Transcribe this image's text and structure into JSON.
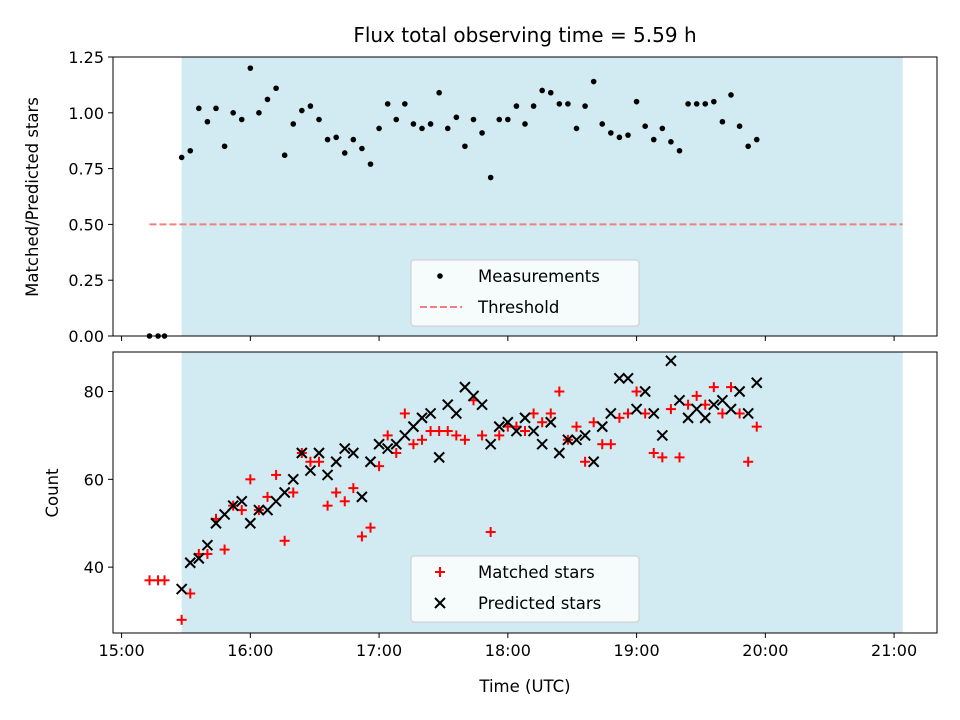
{
  "colors": {
    "observing_window": "#add8e6",
    "measurement": "#000000",
    "threshold": "#f08080",
    "matched": "#ff0000",
    "predicted": "#000000"
  },
  "chart_data": [
    {
      "type": "scatter",
      "title": "Flux total observing time = 5.59 h",
      "xlabel": "",
      "ylabel": "Matched/Predicted stars",
      "xlim": [
        "14:56",
        "21:20"
      ],
      "ylim": [
        0,
        1.25
      ],
      "grid": false,
      "legend_position": "lower-center",
      "x_ticks": [
        "15:00",
        "16:00",
        "17:00",
        "18:00",
        "19:00",
        "20:00",
        "21:00"
      ],
      "y_ticks": [
        "0.00",
        "0.25",
        "0.50",
        "0.75",
        "1.00",
        "1.25"
      ],
      "observing_window": [
        "15:28",
        "21:04"
      ],
      "threshold": {
        "value": 0.5,
        "from": "15:13",
        "to": "21:04",
        "style": "dashed"
      },
      "legend": [
        "Measurements",
        "Threshold"
      ],
      "series": [
        {
          "name": "Measurements",
          "points": [
            [
              "15:13",
              0.0
            ],
            [
              "15:17",
              0.0
            ],
            [
              "15:20",
              0.0
            ],
            [
              "15:28",
              0.8
            ],
            [
              "15:32",
              0.83
            ],
            [
              "15:36",
              1.02
            ],
            [
              "15:40",
              0.96
            ],
            [
              "15:44",
              1.02
            ],
            [
              "15:48",
              0.85
            ],
            [
              "15:52",
              1.0
            ],
            [
              "15:56",
              0.97
            ],
            [
              "16:00",
              1.2
            ],
            [
              "16:04",
              1.0
            ],
            [
              "16:08",
              1.06
            ],
            [
              "16:12",
              1.11
            ],
            [
              "16:16",
              0.81
            ],
            [
              "16:20",
              0.95
            ],
            [
              "16:24",
              1.01
            ],
            [
              "16:28",
              1.03
            ],
            [
              "16:32",
              0.97
            ],
            [
              "16:36",
              0.88
            ],
            [
              "16:40",
              0.89
            ],
            [
              "16:44",
              0.82
            ],
            [
              "16:48",
              0.88
            ],
            [
              "16:52",
              0.84
            ],
            [
              "16:56",
              0.77
            ],
            [
              "17:00",
              0.93
            ],
            [
              "17:04",
              1.04
            ],
            [
              "17:08",
              0.97
            ],
            [
              "17:12",
              1.04
            ],
            [
              "17:16",
              0.95
            ],
            [
              "17:20",
              0.93
            ],
            [
              "17:24",
              0.95
            ],
            [
              "17:28",
              1.09
            ],
            [
              "17:32",
              0.93
            ],
            [
              "17:36",
              0.98
            ],
            [
              "17:40",
              0.85
            ],
            [
              "17:44",
              0.97
            ],
            [
              "17:48",
              0.91
            ],
            [
              "17:52",
              0.71
            ],
            [
              "17:56",
              0.97
            ],
            [
              "18:00",
              0.97
            ],
            [
              "18:04",
              1.03
            ],
            [
              "18:08",
              0.95
            ],
            [
              "18:12",
              1.03
            ],
            [
              "18:16",
              1.1
            ],
            [
              "18:20",
              1.09
            ],
            [
              "18:24",
              1.04
            ],
            [
              "18:28",
              1.04
            ],
            [
              "18:32",
              0.93
            ],
            [
              "18:36",
              1.03
            ],
            [
              "18:40",
              1.14
            ],
            [
              "18:44",
              0.95
            ],
            [
              "18:48",
              0.91
            ],
            [
              "18:52",
              0.89
            ],
            [
              "18:56",
              0.9
            ],
            [
              "19:00",
              1.05
            ],
            [
              "19:04",
              0.94
            ],
            [
              "19:08",
              0.88
            ],
            [
              "19:12",
              0.93
            ],
            [
              "19:16",
              0.87
            ],
            [
              "19:20",
              0.83
            ],
            [
              "19:24",
              1.04
            ],
            [
              "19:28",
              1.04
            ],
            [
              "19:32",
              1.04
            ],
            [
              "19:36",
              1.05
            ],
            [
              "19:40",
              0.96
            ],
            [
              "19:44",
              1.08
            ],
            [
              "19:48",
              0.94
            ],
            [
              "19:52",
              0.85
            ],
            [
              "19:56",
              0.88
            ]
          ]
        }
      ]
    },
    {
      "type": "scatter",
      "title": "",
      "xlabel": "Time (UTC)",
      "ylabel": "Count",
      "xlim": [
        "14:56",
        "21:20"
      ],
      "ylim": [
        25,
        89
      ],
      "grid": false,
      "legend_position": "lower-center",
      "x_ticks": [
        "15:00",
        "16:00",
        "17:00",
        "18:00",
        "19:00",
        "20:00",
        "21:00"
      ],
      "y_ticks": [
        "40",
        "60",
        "80"
      ],
      "observing_window": [
        "15:28",
        "21:04"
      ],
      "legend": [
        "Matched stars",
        "Predicted stars"
      ],
      "series": [
        {
          "name": "Matched stars",
          "marker": "plus",
          "points": [
            [
              "15:13",
              37
            ],
            [
              "15:17",
              37
            ],
            [
              "15:20",
              37
            ],
            [
              "15:28",
              28
            ],
            [
              "15:32",
              34
            ],
            [
              "15:36",
              43
            ],
            [
              "15:40",
              43
            ],
            [
              "15:44",
              51
            ],
            [
              "15:48",
              44
            ],
            [
              "15:52",
              54
            ],
            [
              "15:56",
              53
            ],
            [
              "16:00",
              60
            ],
            [
              "16:04",
              53
            ],
            [
              "16:08",
              56
            ],
            [
              "16:12",
              61
            ],
            [
              "16:16",
              46
            ],
            [
              "16:20",
              57
            ],
            [
              "16:24",
              66
            ],
            [
              "16:28",
              64
            ],
            [
              "16:32",
              64
            ],
            [
              "16:36",
              54
            ],
            [
              "16:40",
              57
            ],
            [
              "16:44",
              55
            ],
            [
              "16:48",
              58
            ],
            [
              "16:52",
              47
            ],
            [
              "16:56",
              49
            ],
            [
              "17:00",
              63
            ],
            [
              "17:04",
              70
            ],
            [
              "17:08",
              66
            ],
            [
              "17:12",
              75
            ],
            [
              "17:16",
              68
            ],
            [
              "17:20",
              69
            ],
            [
              "17:24",
              71
            ],
            [
              "17:28",
              71
            ],
            [
              "17:32",
              71
            ],
            [
              "17:36",
              70
            ],
            [
              "17:40",
              69
            ],
            [
              "17:44",
              78
            ],
            [
              "17:48",
              70
            ],
            [
              "17:52",
              48
            ],
            [
              "17:56",
              70
            ],
            [
              "18:00",
              72
            ],
            [
              "18:04",
              72
            ],
            [
              "18:08",
              71
            ],
            [
              "18:12",
              75
            ],
            [
              "18:16",
              73
            ],
            [
              "18:20",
              75
            ],
            [
              "18:24",
              80
            ],
            [
              "18:28",
              69
            ],
            [
              "18:32",
              72
            ],
            [
              "18:36",
              64
            ],
            [
              "18:40",
              73
            ],
            [
              "18:44",
              68
            ],
            [
              "18:48",
              68
            ],
            [
              "18:52",
              74
            ],
            [
              "18:56",
              75
            ],
            [
              "19:00",
              80
            ],
            [
              "19:04",
              75
            ],
            [
              "19:08",
              66
            ],
            [
              "19:12",
              65
            ],
            [
              "19:16",
              76
            ],
            [
              "19:20",
              65
            ],
            [
              "19:24",
              77
            ],
            [
              "19:28",
              79
            ],
            [
              "19:32",
              77
            ],
            [
              "19:36",
              81
            ],
            [
              "19:40",
              75
            ],
            [
              "19:44",
              81
            ],
            [
              "19:48",
              75
            ],
            [
              "19:52",
              64
            ],
            [
              "19:56",
              72
            ]
          ]
        },
        {
          "name": "Predicted stars",
          "marker": "x",
          "points": [
            [
              "15:28",
              35
            ],
            [
              "15:32",
              41
            ],
            [
              "15:36",
              42
            ],
            [
              "15:40",
              45
            ],
            [
              "15:44",
              50
            ],
            [
              "15:48",
              52
            ],
            [
              "15:52",
              54
            ],
            [
              "15:56",
              55
            ],
            [
              "16:00",
              50
            ],
            [
              "16:04",
              53
            ],
            [
              "16:08",
              53
            ],
            [
              "16:12",
              55
            ],
            [
              "16:16",
              57
            ],
            [
              "16:20",
              60
            ],
            [
              "16:24",
              66
            ],
            [
              "16:28",
              62
            ],
            [
              "16:32",
              66
            ],
            [
              "16:36",
              61
            ],
            [
              "16:40",
              64
            ],
            [
              "16:44",
              67
            ],
            [
              "16:48",
              66
            ],
            [
              "16:52",
              56
            ],
            [
              "16:56",
              64
            ],
            [
              "17:00",
              68
            ],
            [
              "17:04",
              67
            ],
            [
              "17:08",
              68
            ],
            [
              "17:12",
              70
            ],
            [
              "17:16",
              72
            ],
            [
              "17:20",
              74
            ],
            [
              "17:24",
              75
            ],
            [
              "17:28",
              65
            ],
            [
              "17:32",
              77
            ],
            [
              "17:36",
              75
            ],
            [
              "17:40",
              81
            ],
            [
              "17:44",
              79
            ],
            [
              "17:48",
              77
            ],
            [
              "17:52",
              68
            ],
            [
              "17:56",
              72
            ],
            [
              "18:00",
              73
            ],
            [
              "18:04",
              71
            ],
            [
              "18:08",
              74
            ],
            [
              "18:12",
              71
            ],
            [
              "18:16",
              68
            ],
            [
              "18:20",
              73
            ],
            [
              "18:24",
              66
            ],
            [
              "18:28",
              69
            ],
            [
              "18:32",
              69
            ],
            [
              "18:36",
              70
            ],
            [
              "18:40",
              64
            ],
            [
              "18:44",
              72
            ],
            [
              "18:48",
              75
            ],
            [
              "18:52",
              83
            ],
            [
              "18:56",
              83
            ],
            [
              "19:00",
              76
            ],
            [
              "19:04",
              80
            ],
            [
              "19:08",
              75
            ],
            [
              "19:12",
              70
            ],
            [
              "19:16",
              87
            ],
            [
              "19:20",
              78
            ],
            [
              "19:24",
              74
            ],
            [
              "19:28",
              76
            ],
            [
              "19:32",
              74
            ],
            [
              "19:36",
              77
            ],
            [
              "19:40",
              78
            ],
            [
              "19:44",
              76
            ],
            [
              "19:48",
              80
            ],
            [
              "19:52",
              75
            ],
            [
              "19:56",
              82
            ]
          ]
        }
      ]
    }
  ]
}
